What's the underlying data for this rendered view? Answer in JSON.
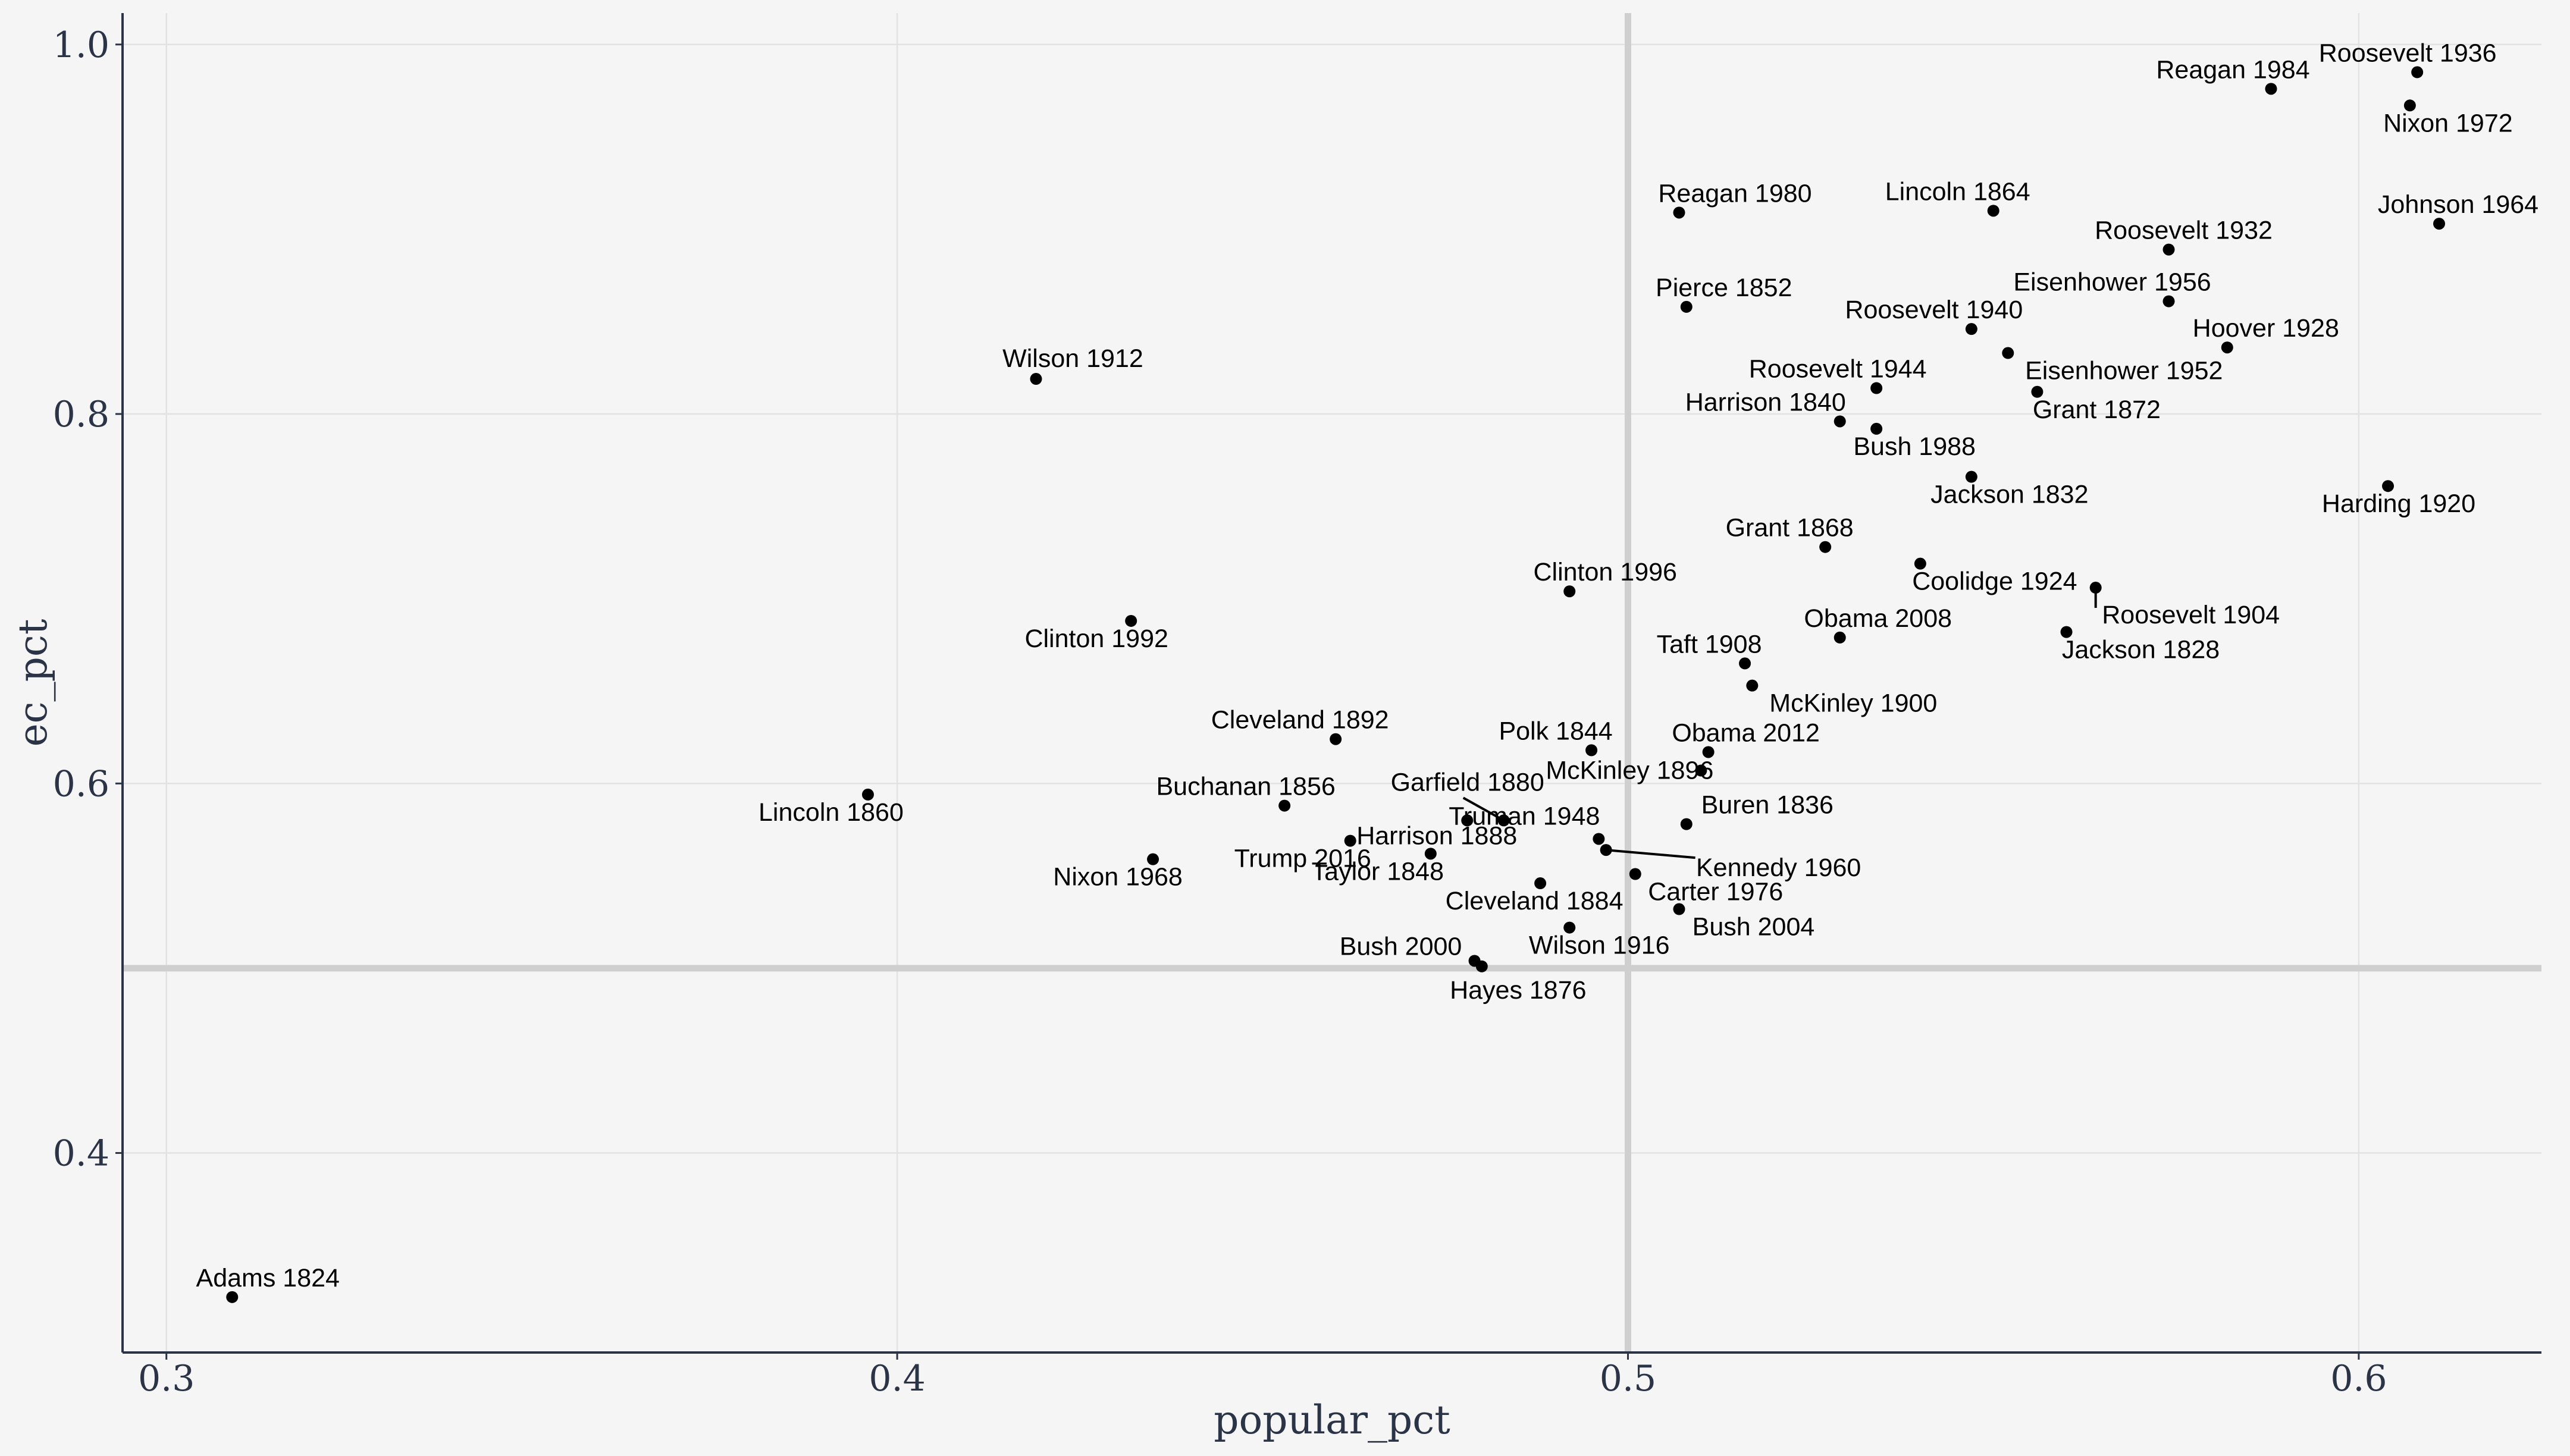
{
  "chart_data": {
    "type": "scatter",
    "xlabel": "popular_pct",
    "ylabel": "ec_pct",
    "xlim": [
      0.294,
      0.625
    ],
    "ylim": [
      0.292,
      1.017
    ],
    "xticks": [
      0.3,
      0.4,
      0.5,
      0.6
    ],
    "xtick_labels": [
      "0.3",
      "0.4",
      "0.5",
      "0.6"
    ],
    "yticks": [
      0.4,
      0.6,
      0.8,
      1.0
    ],
    "ytick_labels": [
      "0.4",
      "0.6",
      "0.8",
      "1.0"
    ],
    "grid": true,
    "reference_lines": {
      "x": 0.5,
      "y": 0.5
    },
    "points": [
      {
        "label": "Adams 1824",
        "x": 0.309,
        "y": 0.322
      },
      {
        "label": "Lincoln 1860",
        "x": 0.396,
        "y": 0.594
      },
      {
        "label": "Wilson 1912",
        "x": 0.419,
        "y": 0.819
      },
      {
        "label": "Clinton 1992",
        "x": 0.432,
        "y": 0.688
      },
      {
        "label": "Nixon 1968",
        "x": 0.435,
        "y": 0.559
      },
      {
        "label": "Buchanan 1856",
        "x": 0.453,
        "y": 0.588
      },
      {
        "label": "Cleveland 1892",
        "x": 0.46,
        "y": 0.624
      },
      {
        "label": "Trump 2016",
        "x": 0.462,
        "y": 0.569
      },
      {
        "label": "Taylor 1848",
        "x": 0.473,
        "y": 0.562
      },
      {
        "label": "Harrison 1888",
        "x": 0.478,
        "y": 0.58
      },
      {
        "label": "Bush 2000",
        "x": 0.479,
        "y": 0.504
      },
      {
        "label": "Hayes 1876",
        "x": 0.48,
        "y": 0.501
      },
      {
        "label": "Garfield 1880",
        "x": 0.483,
        "y": 0.58
      },
      {
        "label": "Cleveland 1884",
        "x": 0.488,
        "y": 0.546
      },
      {
        "label": "Clinton 1996",
        "x": 0.492,
        "y": 0.704
      },
      {
        "label": "Wilson 1916",
        "x": 0.492,
        "y": 0.522
      },
      {
        "label": "Polk 1844",
        "x": 0.495,
        "y": 0.618
      },
      {
        "label": "Truman 1948",
        "x": 0.496,
        "y": 0.57
      },
      {
        "label": "Kennedy 1960",
        "x": 0.497,
        "y": 0.564
      },
      {
        "label": "Carter 1976",
        "x": 0.501,
        "y": 0.551
      },
      {
        "label": "Reagan 1980",
        "x": 0.507,
        "y": 0.909
      },
      {
        "label": "Bush 2004",
        "x": 0.507,
        "y": 0.532
      },
      {
        "label": "Pierce 1852",
        "x": 0.508,
        "y": 0.858
      },
      {
        "label": "Buren 1836",
        "x": 0.508,
        "y": 0.578
      },
      {
        "label": "McKinley 1896",
        "x": 0.51,
        "y": 0.607
      },
      {
        "label": "Obama 2012",
        "x": 0.511,
        "y": 0.617
      },
      {
        "label": "Taft 1908",
        "x": 0.516,
        "y": 0.665
      },
      {
        "label": "McKinley 1900",
        "x": 0.517,
        "y": 0.653
      },
      {
        "label": "Grant 1868",
        "x": 0.527,
        "y": 0.728
      },
      {
        "label": "Harrison 1840",
        "x": 0.529,
        "y": 0.796
      },
      {
        "label": "Obama 2008",
        "x": 0.529,
        "y": 0.679
      },
      {
        "label": "Roosevelt 1944",
        "x": 0.534,
        "y": 0.814
      },
      {
        "label": "Bush 1988",
        "x": 0.534,
        "y": 0.792
      },
      {
        "label": "Coolidge 1924",
        "x": 0.54,
        "y": 0.719
      },
      {
        "label": "Roosevelt 1940",
        "x": 0.547,
        "y": 0.846
      },
      {
        "label": "Jackson 1832",
        "x": 0.547,
        "y": 0.766
      },
      {
        "label": "Lincoln 1864",
        "x": 0.55,
        "y": 0.91
      },
      {
        "label": "Eisenhower 1952",
        "x": 0.552,
        "y": 0.833
      },
      {
        "label": "Grant 1872",
        "x": 0.556,
        "y": 0.812
      },
      {
        "label": "Jackson 1828",
        "x": 0.56,
        "y": 0.682
      },
      {
        "label": "Roosevelt 1904",
        "x": 0.564,
        "y": 0.706
      },
      {
        "label": "Eisenhower 1956",
        "x": 0.574,
        "y": 0.861
      },
      {
        "label": "Roosevelt 1932",
        "x": 0.574,
        "y": 0.889
      },
      {
        "label": "Hoover 1928",
        "x": 0.582,
        "y": 0.836
      },
      {
        "label": "Reagan 1984",
        "x": 0.588,
        "y": 0.976
      },
      {
        "label": "Harding 1920",
        "x": 0.604,
        "y": 0.761
      },
      {
        "label": "Nixon 1972",
        "x": 0.607,
        "y": 0.967
      },
      {
        "label": "Roosevelt 1936",
        "x": 0.608,
        "y": 0.985
      },
      {
        "label": "Johnson 1964",
        "x": 0.611,
        "y": 0.903
      }
    ]
  }
}
